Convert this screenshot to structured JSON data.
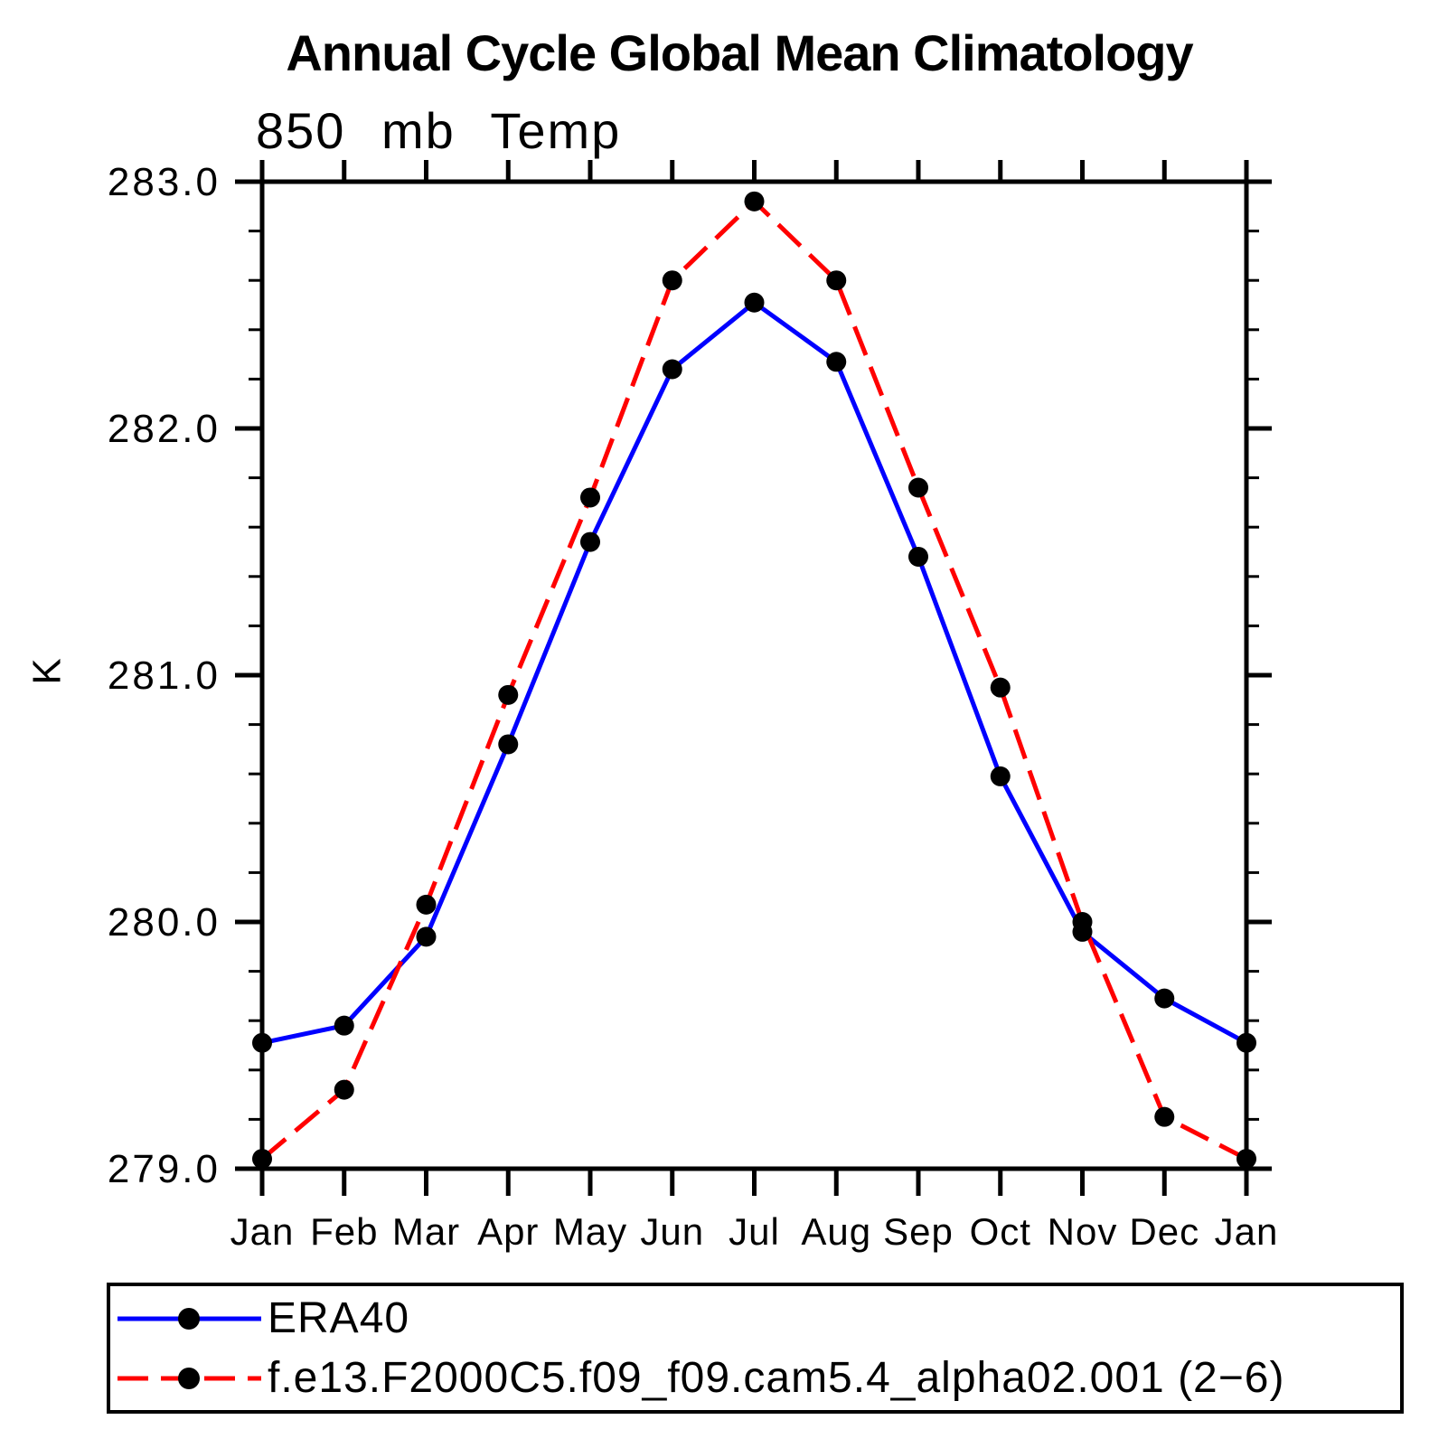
{
  "header": {
    "title": "Annual Cycle Global Mean Climatology",
    "subtitle": "850 mb Temp"
  },
  "y_axis": {
    "label": "K"
  },
  "chart_data": {
    "type": "line",
    "title": "Annual Cycle Global Mean Climatology",
    "subtitle": "850 mb Temp",
    "xlabel": "",
    "ylabel": "K",
    "x_categories": [
      "Jan",
      "Feb",
      "Mar",
      "Apr",
      "May",
      "Jun",
      "Jul",
      "Aug",
      "Sep",
      "Oct",
      "Nov",
      "Dec",
      "Jan"
    ],
    "ylim": [
      279.0,
      283.0
    ],
    "y_major_step": 1.0,
    "y_minor_step": 0.2,
    "y_tick_labels": [
      "279.0",
      "280.0",
      "281.0",
      "282.0",
      "283.0"
    ],
    "grid": false,
    "legend_position": "bottom-left",
    "marker": {
      "shape": "circle",
      "color": "#000000"
    },
    "series": [
      {
        "name": "ERA40",
        "color": "#0000ff",
        "line_style": "solid",
        "values": [
          279.51,
          279.58,
          279.94,
          280.72,
          281.54,
          282.24,
          282.51,
          282.27,
          281.48,
          280.59,
          279.96,
          279.69,
          279.51
        ]
      },
      {
        "name": "f.e13.F2000C5.f09_f09.cam5.4_alpha02.001 (2−6)",
        "color": "#ff0000",
        "line_style": "dashed",
        "values": [
          279.04,
          279.32,
          280.07,
          280.92,
          281.72,
          282.6,
          282.92,
          282.6,
          281.76,
          280.95,
          280.0,
          279.21,
          279.04
        ]
      }
    ]
  }
}
